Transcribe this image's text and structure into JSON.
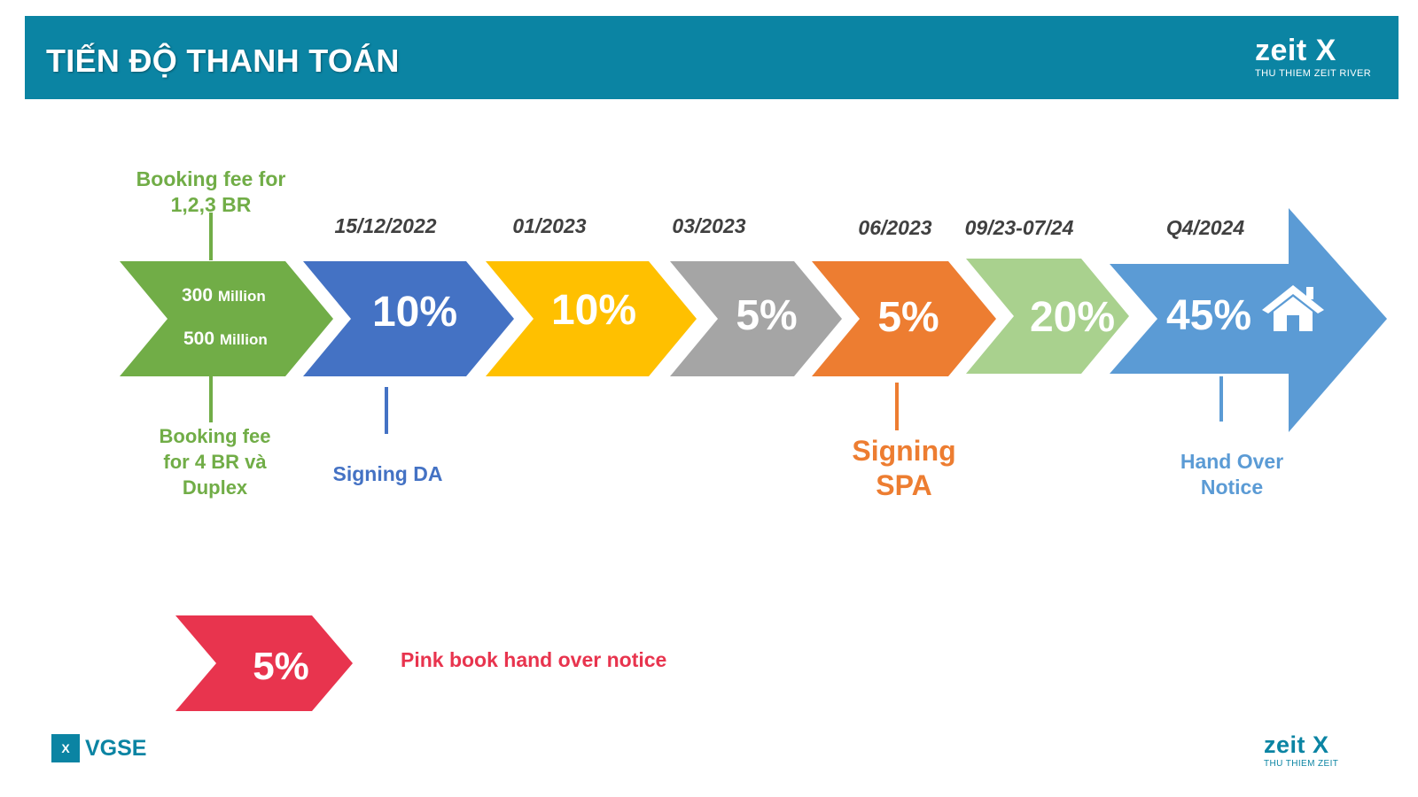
{
  "header": {
    "title": "TIẾN ĐỘ THANH TOÁN",
    "logo_brand": "zeit X",
    "logo_sub": "THU THIEM ZEIT RIVER"
  },
  "colors": {
    "header_bg": "#0b84a3",
    "green": "#71ad47",
    "blue": "#4472c4",
    "yellow": "#ffc000",
    "gray": "#a5a5a5",
    "orange": "#ed7d31",
    "light_green": "#a9d18e",
    "light_blue": "#5b9bd5",
    "red": "#e8344e"
  },
  "booking": {
    "top_label_line1": "Booking fee for",
    "top_label_line2": "1,2,3 BR",
    "amount1_value": "300",
    "amount1_unit": "Million",
    "amount2_value": "500",
    "amount2_unit": "Million",
    "bottom_label_line1": "Booking fee",
    "bottom_label_line2": "for 4 BR và",
    "bottom_label_line3": "Duplex"
  },
  "steps": [
    {
      "date": "15/12/2022",
      "percent": "10%",
      "color": "blue"
    },
    {
      "date": "01/2023",
      "percent": "10%",
      "color": "yellow"
    },
    {
      "date": "03/2023",
      "percent": "5%",
      "color": "gray"
    },
    {
      "date": "06/2023",
      "percent": "5%",
      "color": "orange"
    },
    {
      "date": "09/23-07/24",
      "percent": "20%",
      "color": "light_green"
    },
    {
      "date": "Q4/2024",
      "percent": "45%",
      "color": "light_blue",
      "icon": "house-icon"
    }
  ],
  "milestones": {
    "signing_da": "Signing DA",
    "signing_spa_line1": "Signing",
    "signing_spa_line2": "SPA",
    "handover_line1": "Hand Over",
    "handover_line2": "Notice"
  },
  "pink_book": {
    "percent": "5%",
    "label": "Pink book hand over notice"
  },
  "footer": {
    "left_mark": "X",
    "left_text": "VGSE",
    "right_brand": "zeit X",
    "right_sub": "THU THIEM ZEIT"
  }
}
